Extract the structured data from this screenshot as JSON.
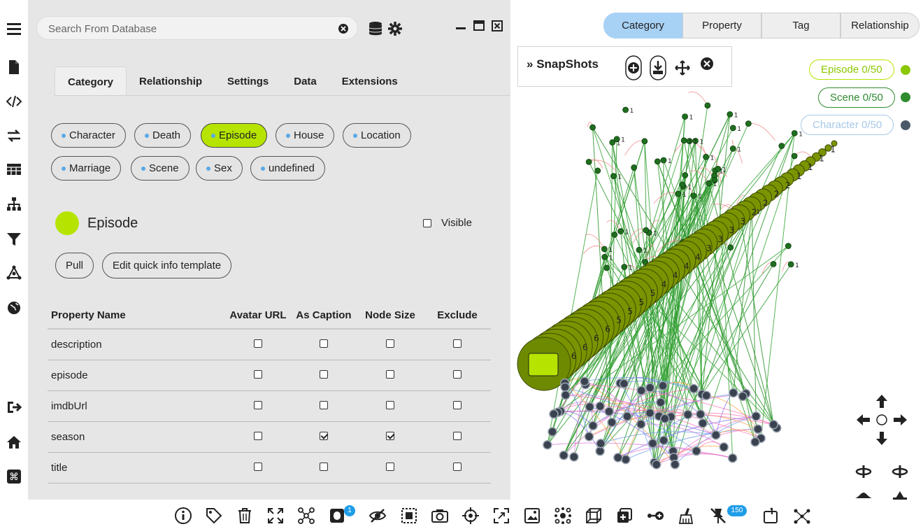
{
  "search": {
    "placeholder": "Search From Database"
  },
  "tabs": [
    {
      "label": "Category",
      "active": true
    },
    {
      "label": "Relationship"
    },
    {
      "label": "Settings"
    },
    {
      "label": "Data"
    },
    {
      "label": "Extensions"
    }
  ],
  "categories": [
    {
      "label": "Character"
    },
    {
      "label": "Death"
    },
    {
      "label": "Episode",
      "active": true
    },
    {
      "label": "House"
    },
    {
      "label": "Location"
    },
    {
      "label": "Marriage"
    },
    {
      "label": "Scene"
    },
    {
      "label": "Sex"
    },
    {
      "label": "undefined"
    }
  ],
  "selected_category": {
    "name": "Episode",
    "color": "#b6e400",
    "visible_label": "Visible",
    "visible_checked": false
  },
  "buttons": {
    "pull": "Pull",
    "edit_template": "Edit quick info template"
  },
  "table": {
    "headers": [
      "Property Name",
      "Avatar URL",
      "As Caption",
      "Node Size",
      "Exclude"
    ],
    "rows": [
      {
        "name": "description",
        "avatar": false,
        "caption": false,
        "size": false,
        "exclude": false
      },
      {
        "name": "episode",
        "avatar": false,
        "caption": false,
        "size": false,
        "exclude": false
      },
      {
        "name": "imdbUrl",
        "avatar": false,
        "caption": false,
        "size": false,
        "exclude": false
      },
      {
        "name": "season",
        "avatar": false,
        "caption": true,
        "size": true,
        "exclude": false
      },
      {
        "name": "title",
        "avatar": false,
        "caption": false,
        "size": false,
        "exclude": false
      }
    ]
  },
  "view_tabs": [
    {
      "label": "Category",
      "active": true
    },
    {
      "label": "Property"
    },
    {
      "label": "Tag"
    },
    {
      "label": "Relationship"
    }
  ],
  "snapshots": {
    "title": "SnapShots"
  },
  "legend": [
    {
      "label": "Episode 0/50",
      "color": "#8cc800"
    },
    {
      "label": "Scene 0/50",
      "color": "#2e8b2e"
    },
    {
      "label": "Character 0/50",
      "color": "#a8c8e8"
    }
  ],
  "graph_labels": [
    "1",
    "2",
    "3",
    "4",
    "5",
    "6"
  ],
  "toolbar": {
    "badge_hidden": "1",
    "badge_pins": "150"
  },
  "colors": {
    "accent_blue": "#a7d1f5",
    "episode_green": "#b6e400",
    "edge_green": "#2e9e2e",
    "edge_pink": "#f08080"
  }
}
